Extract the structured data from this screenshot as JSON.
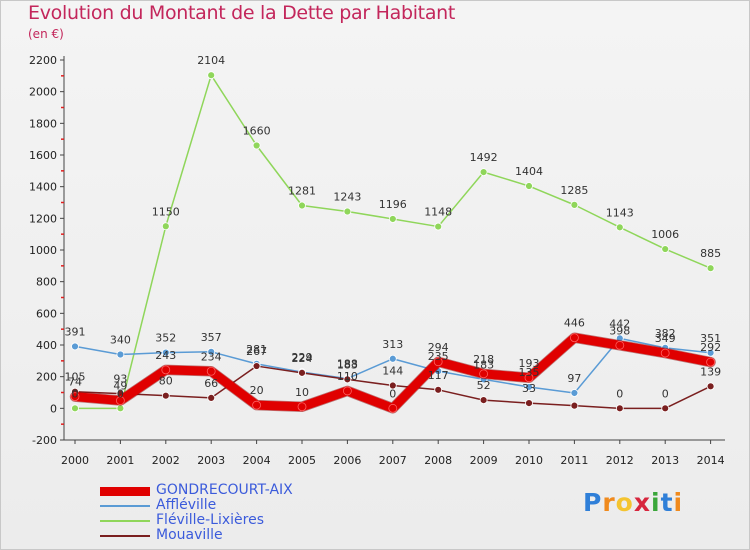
{
  "title": "Evolution du Montant de la Dette par Habitant",
  "subtitle": "(en €)",
  "chart_data": {
    "type": "line",
    "categories": [
      "2000",
      "2001",
      "2002",
      "2003",
      "2004",
      "2005",
      "2006",
      "2007",
      "2008",
      "2009",
      "2010",
      "2011",
      "2012",
      "2013",
      "2014"
    ],
    "ylim": [
      -200,
      2200
    ],
    "yticks": [
      -200,
      0,
      200,
      400,
      600,
      800,
      1000,
      1200,
      1400,
      1600,
      1800,
      2000,
      2200
    ],
    "grid": false,
    "legend": "bottom-left",
    "series": [
      {
        "name": "GONDRECOURT-AIX",
        "color": "#e00000",
        "width": 9,
        "values": [
          74,
          49,
          243,
          234,
          20,
          10,
          110,
          0,
          294,
          218,
          193,
          446,
          398,
          349,
          292
        ],
        "labels": [
          "74",
          "49",
          "243",
          "234",
          "20",
          "10",
          "110",
          "0",
          "294",
          "218",
          "193",
          "446",
          "398",
          "349",
          "292"
        ]
      },
      {
        "name": "Affléville",
        "color": "#5a9bd5",
        "width": 1.5,
        "values": [
          391,
          340,
          352,
          357,
          281,
          229,
          188,
          313,
          235,
          183,
          135,
          97,
          442,
          382,
          351
        ],
        "labels": [
          "391",
          "340",
          "352",
          "357",
          "281",
          "229",
          "188",
          "313",
          "235",
          "183",
          "135",
          "97",
          "442",
          "382",
          "351"
        ]
      },
      {
        "name": "Fléville-Lixières",
        "color": "#8fd65a",
        "width": 1.5,
        "values": [
          0,
          0,
          1150,
          2104,
          1660,
          1281,
          1243,
          1196,
          1148,
          1492,
          1404,
          1285,
          1143,
          1006,
          885
        ],
        "labels": [
          "0",
          "0",
          "1150",
          "2104",
          "1660",
          "1281",
          "1243",
          "1196",
          "1148",
          "1492",
          "1404",
          "1285",
          "1143",
          "1006",
          "885"
        ]
      },
      {
        "name": "Mouaville",
        "color": "#7a1f1f",
        "width": 1.5,
        "values": [
          105,
          93,
          80,
          66,
          267,
          224,
          183,
          144,
          117,
          52,
          33,
          17,
          0,
          0,
          139
        ],
        "labels": [
          "105",
          "93",
          "80",
          "66",
          "267",
          "224",
          "183",
          "144",
          "117",
          "52",
          "33",
          "",
          "0",
          "0",
          "139"
        ]
      }
    ]
  },
  "logo": {
    "letters": [
      "P",
      "r",
      "o",
      "x",
      "i",
      "t",
      "i"
    ],
    "colors": [
      "#2f7fd8",
      "#f08a1d",
      "#f4c430",
      "#d7263d",
      "#3aa63a",
      "#2f7fd8",
      "#f08a1d"
    ]
  }
}
